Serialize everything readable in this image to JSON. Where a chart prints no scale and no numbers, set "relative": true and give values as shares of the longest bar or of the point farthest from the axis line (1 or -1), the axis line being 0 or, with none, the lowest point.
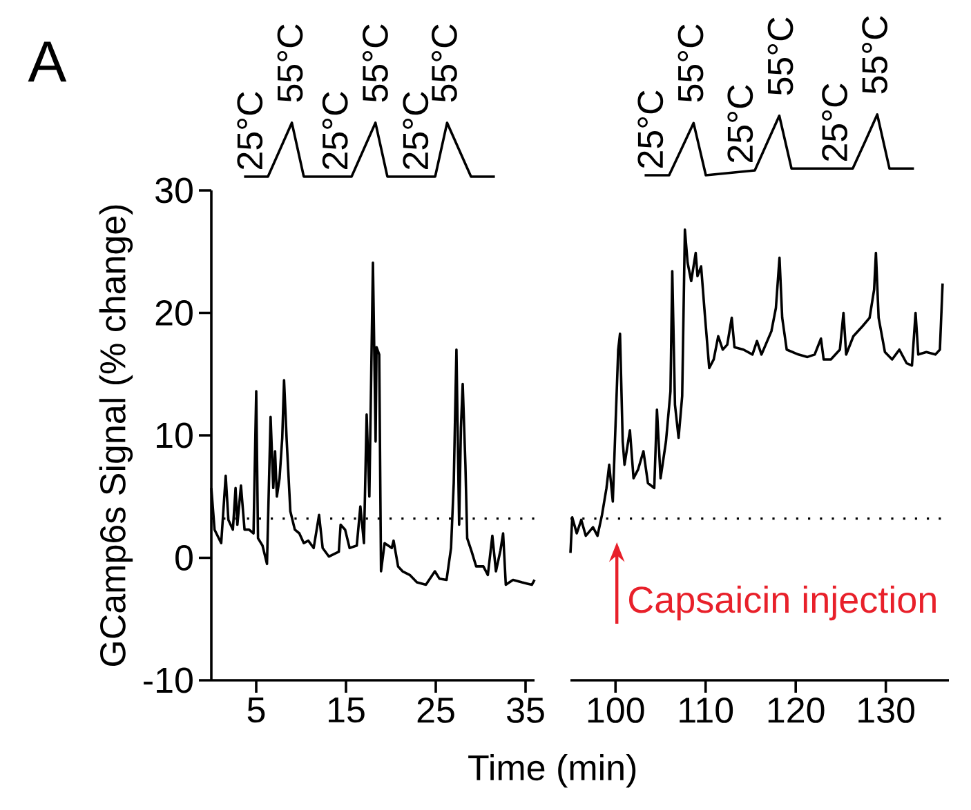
{
  "chart_data": [
    {
      "type": "line",
      "relative": true,
      "tick_labels": false,
      "color": "#000000",
      "categories": [
        null,
        null,
        null,
        null,
        null,
        null,
        null,
        null,
        null,
        null,
        null,
        null,
        null,
        null,
        null,
        null,
        null,
        null,
        null,
        null,
        null,
        null
      ],
      "values": [
        0,
        0,
        0,
        0.5,
        1,
        0,
        0,
        0,
        0,
        0,
        0.5,
        1,
        0,
        0,
        0,
        0,
        0,
        1,
        0.5,
        0,
        0,
        0
      ],
      "annotations": [
        "25°C",
        "55°C",
        "25°C",
        "55°C",
        "25°C",
        "55°C"
      ]
    },
    {
      "type": "line",
      "relative": true,
      "tick_labels": false,
      "color": "#000000",
      "categories": [
        null,
        null,
        null,
        null,
        null,
        null,
        null,
        null,
        null,
        null,
        null,
        null,
        null,
        null,
        null,
        null,
        null,
        null,
        null,
        null,
        null,
        null,
        null
      ],
      "values": [
        0,
        0,
        0,
        0.43,
        0.86,
        0,
        0.02,
        0.04,
        0.06,
        0.08,
        0.53,
        0.98,
        0.11,
        0.11,
        0.11,
        0.11,
        0.11,
        0.11,
        0.55,
        1.0,
        0.11,
        0.11,
        0.11
      ],
      "annotations": [
        "25°C",
        "55°C",
        "25°C",
        "55°C",
        "25°C",
        "55°C"
      ]
    },
    {
      "type": "line",
      "xlim": [
        0,
        36
      ],
      "ylim": [
        -10,
        30
      ],
      "xticks": [
        5,
        15,
        25,
        35
      ],
      "yticks": [
        -10,
        0,
        10,
        20,
        30
      ],
      "xlabel": "Time (min)",
      "ylabel": "GCamp6s Signal (% change)",
      "color": "#000000",
      "ref_lines": [
        {
          "axis": "y",
          "value": 3.2,
          "line_style": "dotted",
          "color": "#000000"
        }
      ],
      "annotations": [
        "A"
      ],
      "x": [
        0,
        0.36,
        1.1,
        1.6,
        1.9,
        2.4,
        2.7,
        2.9,
        3.3,
        3.7,
        4.2,
        4.7,
        5.0,
        5.2,
        5.7,
        6.2,
        6.6,
        6.9,
        7.1,
        7.3,
        7.6,
        7.9,
        8.1,
        8.4,
        8.8,
        9.3,
        9.8,
        10.3,
        10.8,
        11.4,
        12.0,
        12.4,
        13.1,
        14.2,
        14.4,
        14.9,
        15.4,
        16.2,
        16.6,
        17.0,
        17.3,
        17.6,
        18.0,
        18.3,
        18.4,
        18.7,
        18.9,
        19.3,
        20.1,
        20.3,
        20.8,
        21.3,
        22.1,
        22.9,
        23.9,
        24.9,
        25.4,
        26.2,
        26.7,
        27.0,
        27.3,
        27.6,
        27.8,
        28.0,
        28.3,
        28.5,
        29.0,
        29.5,
        30.3,
        30.8,
        31.3,
        31.7,
        32.2,
        32.5,
        32.8,
        33.6,
        34.6,
        35.7,
        36
      ],
      "values": [
        5.7,
        2.3,
        1.2,
        6.7,
        3.1,
        2.3,
        5.7,
        2.7,
        5.9,
        2.3,
        2.3,
        2.0,
        13.6,
        1.6,
        1.0,
        -0.5,
        11.5,
        5.7,
        8.7,
        5.0,
        6.5,
        9.8,
        14.5,
        9.5,
        3.8,
        2.3,
        2.0,
        1.2,
        1.4,
        0.8,
        3.5,
        0.8,
        0.1,
        0.5,
        2.7,
        2.3,
        0.8,
        1.0,
        4.2,
        1.2,
        11.7,
        5.0,
        24.1,
        9.5,
        17.2,
        16.6,
        -1.1,
        1.2,
        0.8,
        1.4,
        -0.7,
        -1.1,
        -1.4,
        -2.0,
        -2.2,
        -1.1,
        -1.7,
        -1.8,
        0.8,
        6.1,
        17.0,
        2.7,
        10.6,
        14.2,
        7.6,
        1.6,
        0.5,
        -0.7,
        -0.7,
        -1.4,
        1.8,
        -1.1,
        0.6,
        2.0,
        -2.2,
        -1.8,
        -2.0,
        -2.2,
        -1.8
      ]
    },
    {
      "type": "line",
      "tick_labels": "x",
      "xlim": [
        95,
        137
      ],
      "ylim": [
        -10,
        30
      ],
      "xticks": [
        100,
        110,
        120,
        130
      ],
      "color": "#000000",
      "ref_lines": [
        {
          "axis": "y",
          "value": 3.2,
          "line_style": "dotted",
          "color": "#000000"
        }
      ],
      "annotations": [
        "Capsaicin injection"
      ],
      "x": [
        95,
        95.2,
        95.7,
        96.2,
        96.7,
        97.5,
        98.0,
        98.5,
        99.0,
        99.3,
        99.7,
        100.3,
        100.5,
        100.8,
        101.0,
        101.6,
        102.0,
        102.5,
        103.1,
        103.6,
        104.3,
        104.6,
        105.0,
        105.6,
        106.1,
        106.3,
        106.6,
        107.0,
        107.4,
        107.7,
        108.0,
        108.4,
        108.9,
        109.1,
        109.5,
        109.9,
        110.4,
        110.9,
        111.4,
        111.9,
        112.4,
        112.9,
        113.2,
        114.2,
        115.2,
        115.7,
        116.2,
        117.3,
        117.8,
        118.2,
        118.5,
        119.0,
        120.3,
        121.3,
        122.1,
        122.8,
        123.1,
        123.9,
        124.9,
        125.3,
        125.6,
        126.4,
        127.4,
        128.2,
        128.7,
        128.9,
        129.2,
        129.9,
        130.7,
        131.5,
        132.3,
        132.9,
        133.3,
        133.6,
        134.5,
        135.5,
        136.0,
        136.3
      ],
      "values": [
        0.4,
        3.3,
        2.0,
        3.1,
        1.8,
        2.5,
        1.8,
        3.5,
        5.7,
        7.6,
        4.6,
        17.0,
        18.3,
        9.5,
        7.6,
        10.4,
        6.5,
        7.2,
        8.7,
        6.1,
        5.7,
        12.1,
        6.5,
        9.5,
        13.6,
        23.4,
        12.5,
        9.8,
        13.2,
        26.8,
        24.1,
        22.6,
        24.9,
        23.0,
        23.8,
        20.0,
        15.5,
        16.2,
        18.1,
        17.0,
        17.4,
        19.6,
        17.2,
        17.0,
        16.6,
        17.7,
        16.6,
        18.5,
        20.4,
        24.5,
        19.6,
        17.0,
        16.6,
        16.4,
        16.6,
        17.9,
        16.2,
        16.2,
        17.0,
        20.0,
        16.6,
        18.1,
        18.9,
        19.6,
        21.9,
        24.9,
        19.6,
        16.8,
        16.2,
        17.0,
        15.9,
        15.7,
        20.0,
        16.6,
        16.8,
        16.6,
        17.0,
        22.4
      ]
    }
  ]
}
